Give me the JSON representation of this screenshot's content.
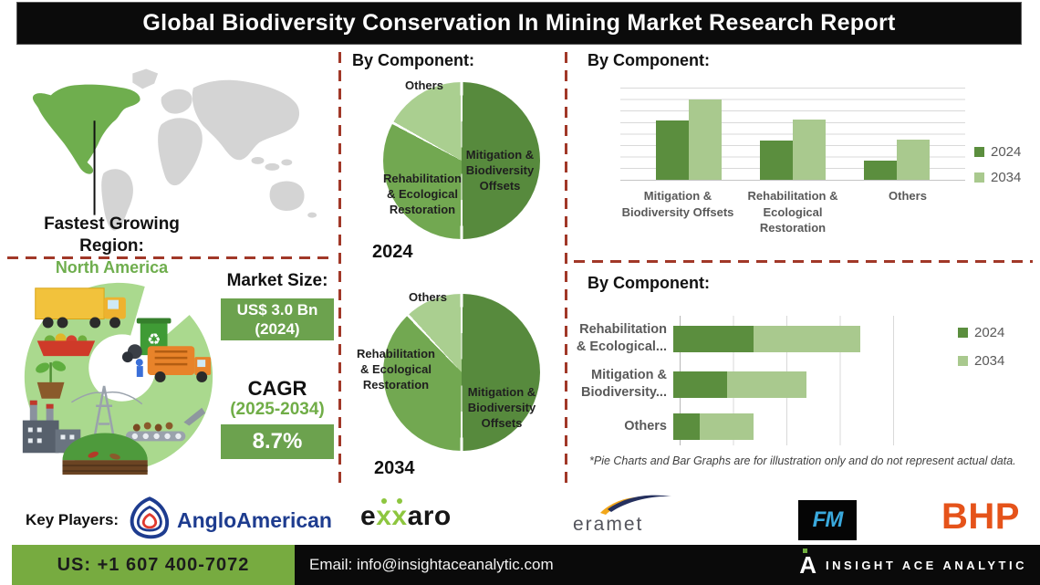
{
  "title": "Global Biodiversity Conservation In Mining Market Research Report",
  "region": {
    "heading": "Fastest Growing Region:",
    "value": "North America"
  },
  "market": {
    "size_label": "Market Size:",
    "size_value": "US$ 3.0 Bn",
    "size_year": "(2024)",
    "cagr_label": "CAGR",
    "cagr_period": "(2025-2034)",
    "cagr_value": "8.7%"
  },
  "sections": {
    "pie_header": "By Component:",
    "bar_header": "By Component:",
    "hbar_header": "By Component:"
  },
  "footnote": "*Pie Charts and Bar Graphs are for illustration only and do not represent actual data.",
  "colors": {
    "dark_green": "#578a3d",
    "medium_green": "#72a851",
    "light_green": "#aacf90",
    "bar_2024": "#5b8e3e",
    "bar_2034": "#a9c98e",
    "accent_red_dash": "#a13828",
    "footer_green": "#77ab40",
    "bhp_orange": "#e5531a",
    "anglo_blue": "#1e3c8f",
    "exxaro_green": "#8dc63f",
    "fm_blue": "#3aa9dd"
  },
  "chart_data": [
    {
      "type": "pie",
      "title": "By Component:",
      "year_label": "2024",
      "slices": [
        {
          "label": "Mitigation & Biodiversity Offsets",
          "value": 50,
          "color": "#578a3d"
        },
        {
          "label": "Rehabilitation & Ecological Restoration",
          "value": 33,
          "color": "#72a851"
        },
        {
          "label": "Others",
          "value": 17,
          "color": "#aacf90"
        }
      ]
    },
    {
      "type": "pie",
      "title": "By Component:",
      "year_label": "2034",
      "slices": [
        {
          "label": "Mitigation & Biodiversity Offsets",
          "value": 50,
          "color": "#578a3d"
        },
        {
          "label": "Rehabilitation & Ecological Restoration",
          "value": 38,
          "color": "#72a851"
        },
        {
          "label": "Others",
          "value": 12,
          "color": "#aacf90"
        }
      ]
    },
    {
      "type": "bar",
      "title": "By Component:",
      "categories": [
        "Mitigation & Biodiversity Offsets",
        "Rehabilitation & Ecological Restoration",
        "Others"
      ],
      "series": [
        {
          "name": "2024",
          "color": "#5b8e3e",
          "values": [
            64,
            43,
            21
          ]
        },
        {
          "name": "2034",
          "color": "#a9c98e",
          "values": [
            87,
            65,
            44
          ]
        }
      ],
      "ylim": [
        0,
        100
      ],
      "grid": true,
      "legend_position": "right"
    },
    {
      "type": "bar",
      "orientation": "horizontal",
      "stacked": true,
      "title": "By Component:",
      "categories": [
        "Rehabilitation & Ecological...",
        "Mitigation & Biodiversity...",
        "Others"
      ],
      "series": [
        {
          "name": "2024",
          "color": "#5b8e3e",
          "values": [
            37.5,
            25,
            12.5
          ]
        },
        {
          "name": "2034",
          "color": "#a9c98e",
          "values": [
            50,
            37.5,
            25
          ]
        }
      ],
      "xlim": [
        0,
        100
      ],
      "grid": true,
      "legend_position": "right"
    }
  ],
  "key_players": {
    "label": "Key Players:",
    "anglo_name": "AngloAmerican",
    "exxaro": {
      "e": "e",
      "x1": "x",
      "x2": "x",
      "rest": "aro"
    },
    "eramet_name": "eramet",
    "fm_name": "FM",
    "bhp_name": "BHP"
  },
  "contact": {
    "phone": "US: +1 607 400-7072",
    "email": "Email: info@insightaceanalytic.com",
    "brand_letter": "A",
    "brand": "INSIGHT ACE ANALYTIC"
  }
}
